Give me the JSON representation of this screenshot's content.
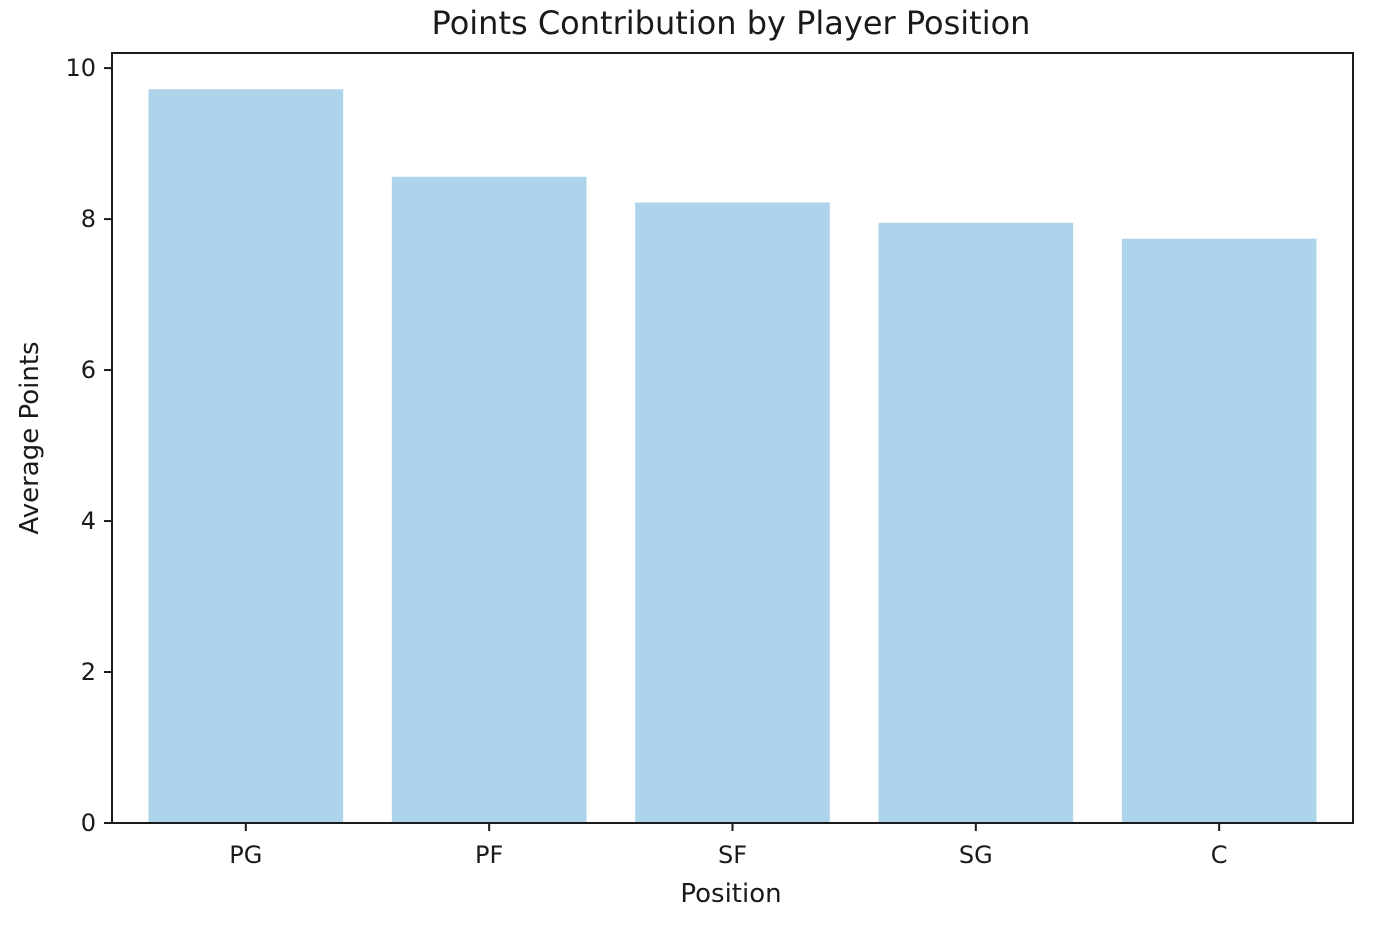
{
  "chart_data": {
    "type": "bar",
    "title": "Points Contribution by Player Position",
    "xlabel": "Position",
    "ylabel": "Average Points",
    "categories": [
      "PG",
      "PF",
      "SF",
      "SG",
      "C"
    ],
    "values": [
      9.72,
      8.56,
      8.22,
      7.95,
      7.74
    ],
    "ylim": [
      0,
      10.2
    ],
    "yticks": [
      0,
      2,
      4,
      6,
      8,
      10
    ],
    "bar_color": "#aed4ec",
    "grid": false,
    "legend": "none"
  }
}
